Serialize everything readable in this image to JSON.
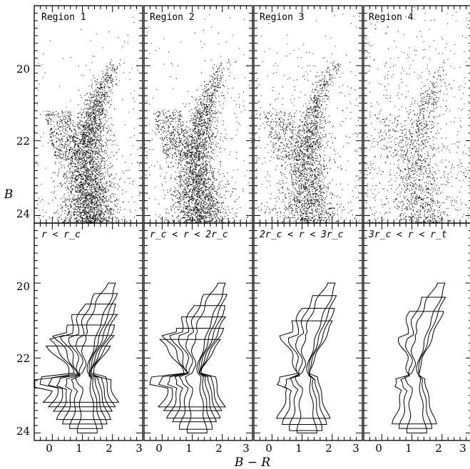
{
  "chart_data": {
    "type": "scatter",
    "description_free": true,
    "xlabel": "B − R",
    "ylabel": "B",
    "xlim": [
      -0.6,
      3.0
    ],
    "ylim": [
      24.2,
      18.4
    ],
    "x_ticks": [
      "0",
      "1",
      "2",
      "3"
    ],
    "y_ticks": [
      "20",
      "22",
      "24"
    ],
    "top_row_labels": [
      "Region 1",
      "Region 2",
      "Region 3",
      "Region 4"
    ],
    "bottom_row_labels": [
      "r < r_c",
      "r_c < r < 2r_c",
      "2r_c < r < 3r_c",
      "3r_c < r < r_t"
    ],
    "panels": [
      {
        "region": "Region 1",
        "density": 1.0,
        "field_level": 0.08
      },
      {
        "region": "Region 2",
        "density": 0.85,
        "field_level": 0.1
      },
      {
        "region": "Region 3",
        "density": 0.6,
        "field_level": 0.28
      },
      {
        "region": "Region 4",
        "density": 0.3,
        "field_level": 0.55
      }
    ]
  }
}
